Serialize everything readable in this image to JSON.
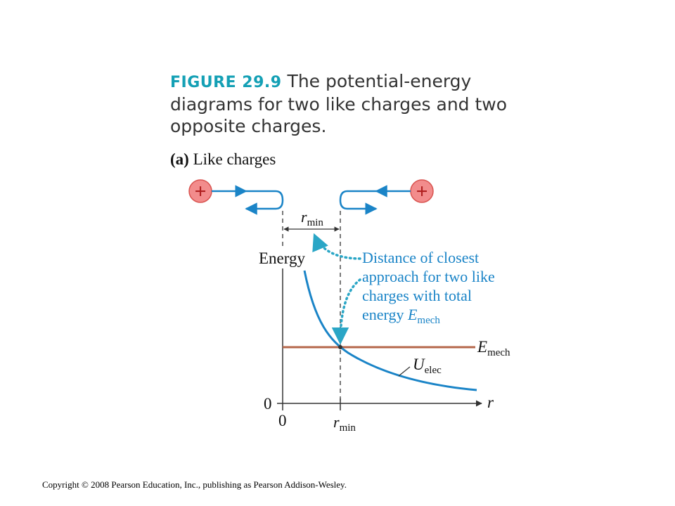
{
  "caption": {
    "figure_label": "FIGURE 29.9",
    "text": "The potential-energy diagrams for two like charges and two opposite charges."
  },
  "panel_label": {
    "letter": "(a)",
    "text": "Like charges"
  },
  "charges": {
    "left_sign": "+",
    "right_sign": "+",
    "color": "#f28c8c",
    "arrow_color": "#1a84c7"
  },
  "labels": {
    "rmin_top_r": "r",
    "rmin_top_sub": "min",
    "energy_axis": "Energy",
    "zero_y": "0",
    "zero_x": "0",
    "rmin_bottom_r": "r",
    "rmin_bottom_sub": "min",
    "r_axis": "r",
    "emech_E": "E",
    "emech_sub": "mech",
    "uelec_U": "U",
    "uelec_sub": "elec"
  },
  "annotation": {
    "line1": "Distance of closest",
    "line2": "approach for two like",
    "line3": "charges with total",
    "line4_prefix": "energy ",
    "line4_E": "E",
    "line4_sub": "mech",
    "color": "#1a84c7"
  },
  "colors": {
    "curve": "#1a84c7",
    "emech_line": "#b5674a",
    "dotted": "#2aa6c6",
    "axis": "#333333"
  },
  "copyright": "Copyright © 2008 Pearson Education, Inc., publishing as Pearson Addison-Wesley."
}
